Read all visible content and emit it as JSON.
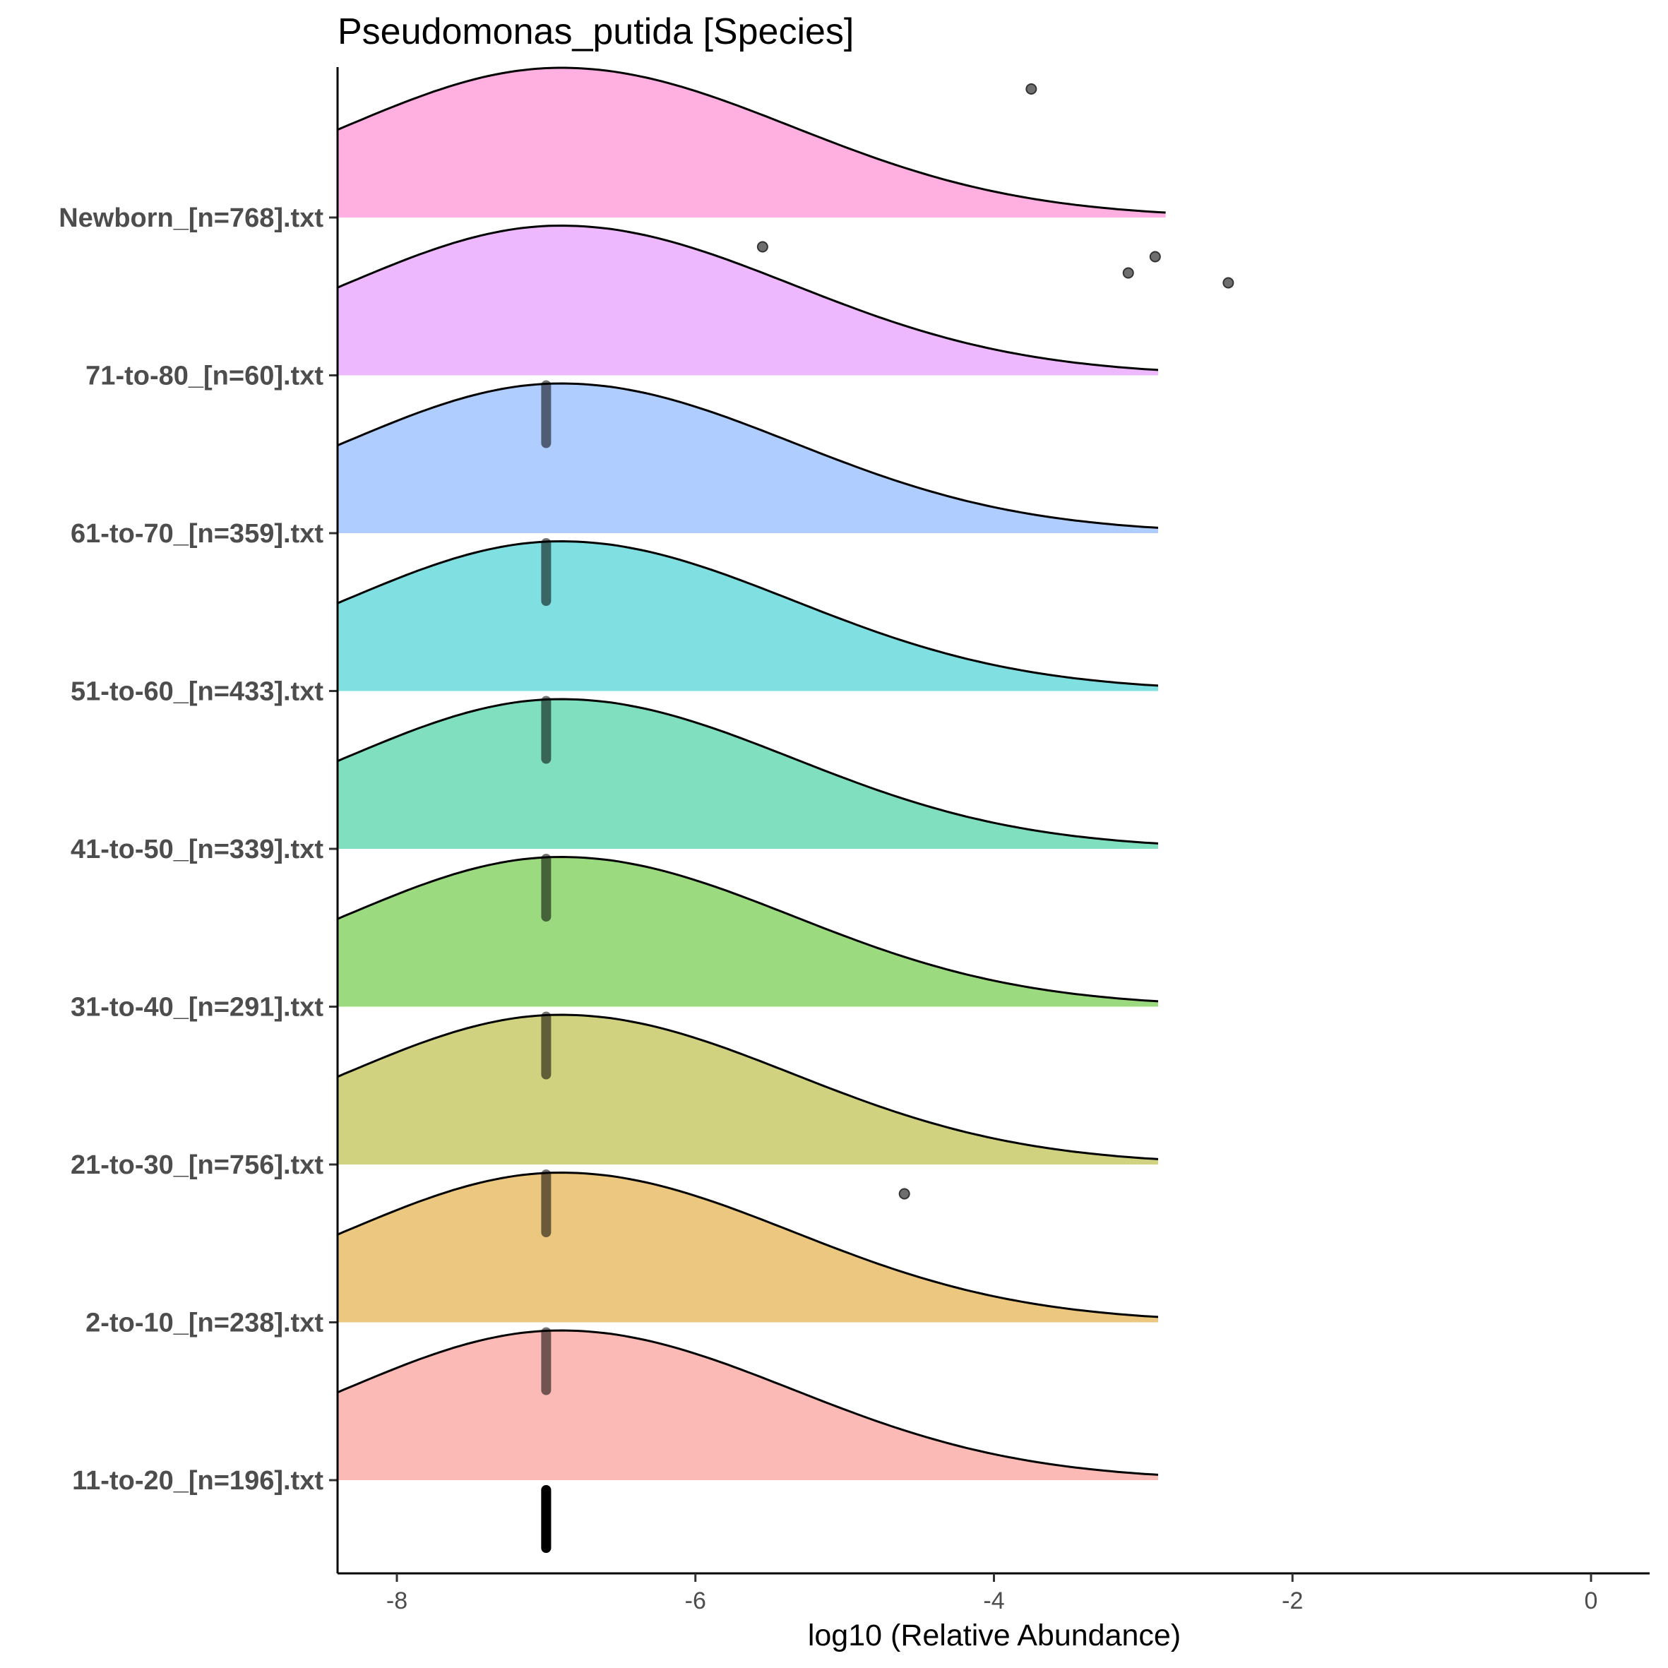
{
  "chart_data": {
    "type": "ridgeline",
    "title": "Pseudomonas_putida [Species]",
    "xlabel": "log10 (Relative Abundance)",
    "ylabel": "",
    "xlim": [
      -8.4,
      0.4
    ],
    "xticks": [
      -8,
      -6,
      -4,
      -2,
      0
    ],
    "grid": false,
    "legend": "none",
    "groups": [
      {
        "name": "11-to-20_[n=196].txt",
        "color": "#f8766d",
        "median": -7.0,
        "density_x_range": [
          -8.4,
          -2.9
        ],
        "peak_x": -6.9,
        "outliers": []
      },
      {
        "name": "2-to-10_[n=238].txt",
        "color": "#d89000",
        "median": -7.0,
        "density_x_range": [
          -8.4,
          -2.9
        ],
        "peak_x": -6.9,
        "outliers": [
          -4.6
        ]
      },
      {
        "name": "21-to-30_[n=756].txt",
        "color": "#a3a500",
        "median": -7.0,
        "density_x_range": [
          -8.4,
          -2.9
        ],
        "peak_x": -6.9,
        "outliers": []
      },
      {
        "name": "31-to-40_[n=291].txt",
        "color": "#39b600",
        "median": -7.0,
        "density_x_range": [
          -8.4,
          -2.9
        ],
        "peak_x": -6.9,
        "outliers": []
      },
      {
        "name": "41-to-50_[n=339].txt",
        "color": "#00bf7d",
        "median": -7.0,
        "density_x_range": [
          -8.4,
          -2.9
        ],
        "peak_x": -6.9,
        "outliers": []
      },
      {
        "name": "51-to-60_[n=433].txt",
        "color": "#00bfc4",
        "median": -7.0,
        "density_x_range": [
          -8.4,
          -2.9
        ],
        "peak_x": -6.9,
        "outliers": []
      },
      {
        "name": "61-to-70_[n=359].txt",
        "color": "#619cff",
        "median": -7.0,
        "density_x_range": [
          -8.4,
          -2.9
        ],
        "peak_x": -6.9,
        "outliers": []
      },
      {
        "name": "71-to-80_[n=60].txt",
        "color": "#db72fb",
        "median": -7.0,
        "density_x_range": [
          -8.4,
          -2.9
        ],
        "peak_x": -6.9,
        "outliers": [
          -5.55,
          -3.1,
          -2.92,
          -2.43
        ]
      },
      {
        "name": "Newborn_[n=768].txt",
        "color": "#ff61c3",
        "median": null,
        "density_x_range": [
          -8.4,
          -2.85
        ],
        "peak_x": -6.9,
        "outliers": [
          -3.75
        ]
      }
    ]
  }
}
